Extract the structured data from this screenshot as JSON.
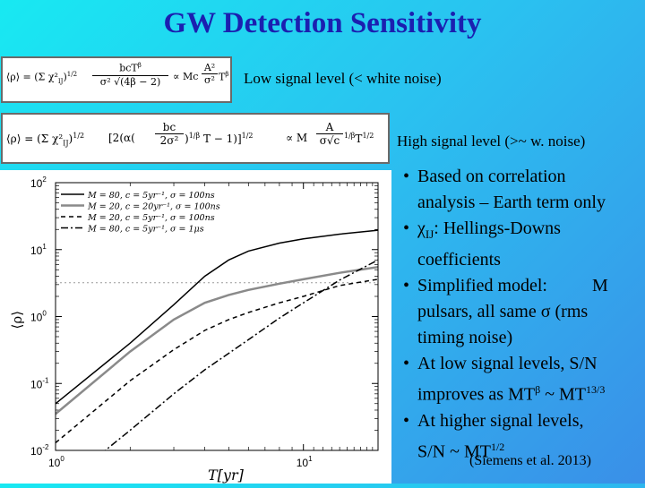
{
  "title": "GW Detection Sensitivity",
  "eq1": {
    "lhs": "⟨ρ⟩ = ",
    "sum_part": "(Σ χ²",
    "sum_sub": "IJ",
    "exp_half": "1/2",
    "num": "bcT",
    "num_sup": "β",
    "den": "σ² √(4β − 2)",
    "propto": "∝ Mc",
    "frac2_num": "A²",
    "frac2_den": "σ²",
    "tail": "T",
    "tail_sup": "β"
  },
  "eq1_caption": "Low signal level (< white noise)",
  "eq2": {
    "lhs": "⟨ρ⟩ = ",
    "sum_part": "(Σ χ²",
    "sum_sub": "IJ",
    "exp_half": "1/2",
    "bracket_open": "[2(α(",
    "inner_num": "bc",
    "inner_den": "2σ²",
    "inner_exp": "1/β",
    "bracket_tail": "T − 1)]",
    "bracket_exp": "1/2",
    "propto": "∝ M",
    "frac_num": "A",
    "frac_den": "σ√c",
    "frac_exp": "1/β",
    "tail": "T",
    "tail_sup": "1/2"
  },
  "eq2_caption": "High signal level (>~ w. noise)",
  "bullets": [
    {
      "first": "Based on correlation",
      "rest": [
        "analysis – Earth term only"
      ]
    },
    {
      "first": "χ",
      "first_sub": "IJ",
      "first_tail": ": Hellings-Downs",
      "rest": [
        "coefficients"
      ]
    },
    {
      "first": "Simplified model:          M",
      "rest": [
        "pulsars, all same σ  (rms",
        "timing noise)"
      ]
    },
    {
      "first": "At low signal levels, S/N",
      "rest_mixed": {
        "a": "improves as MT",
        "a_sup": "β",
        "b": " ~ MT",
        "b_sup": "13/3"
      }
    },
    {
      "first": "At higher signal levels,",
      "rest_mixed2": {
        "a": "S/N ~ MT",
        "a_sup": "1/2"
      }
    }
  ],
  "citation": "(Siemens et al. 2013)",
  "chart_data": {
    "type": "line",
    "xscale": "log",
    "yscale": "log",
    "xlim": [
      1,
      20
    ],
    "ylim": [
      0.01,
      100
    ],
    "xlabel": "T[yr]",
    "ylabel": "⟨ρ⟩",
    "xticks": [
      {
        "v": 1,
        "label": "10",
        "sup": "0"
      },
      {
        "v": 10,
        "label": "10",
        "sup": "1"
      }
    ],
    "yticks": [
      {
        "v": 0.01,
        "label": "10",
        "sup": "-2"
      },
      {
        "v": 0.1,
        "label": "10",
        "sup": "-1"
      },
      {
        "v": 1,
        "label": "10",
        "sup": "0"
      },
      {
        "v": 10,
        "label": "10",
        "sup": "1"
      },
      {
        "v": 100,
        "label": "10",
        "sup": "2"
      }
    ],
    "legend_position": "top-left",
    "series": [
      {
        "name": "M = 80, c = 5yr⁻¹, σ = 100ns",
        "color": "#000000",
        "dash": "solid",
        "width": 1.5,
        "points": [
          [
            1,
            0.05
          ],
          [
            2,
            0.4
          ],
          [
            3,
            1.5
          ],
          [
            4,
            4
          ],
          [
            5,
            7
          ],
          [
            6,
            9.5
          ],
          [
            8,
            12.5
          ],
          [
            10,
            14.5
          ],
          [
            14,
            17
          ],
          [
            20,
            19.5
          ]
        ]
      },
      {
        "name": "M = 20, c = 20yr⁻¹, σ = 100ns",
        "color": "#8a8a8a",
        "dash": "solid",
        "width": 2.5,
        "points": [
          [
            1,
            0.035
          ],
          [
            2,
            0.3
          ],
          [
            3,
            0.9
          ],
          [
            4,
            1.6
          ],
          [
            5,
            2.1
          ],
          [
            6,
            2.5
          ],
          [
            8,
            3.1
          ],
          [
            10,
            3.6
          ],
          [
            14,
            4.5
          ],
          [
            20,
            5.5
          ]
        ]
      },
      {
        "name": "M = 20, c = 5yr⁻¹, σ = 100ns",
        "color": "#000000",
        "dash": "5,4",
        "width": 1.5,
        "points": [
          [
            1,
            0.013
          ],
          [
            2,
            0.11
          ],
          [
            3,
            0.32
          ],
          [
            4,
            0.62
          ],
          [
            5,
            0.9
          ],
          [
            6,
            1.15
          ],
          [
            8,
            1.6
          ],
          [
            10,
            2.0
          ],
          [
            14,
            2.9
          ],
          [
            20,
            3.6
          ]
        ]
      },
      {
        "name": "M = 80, c = 5yr⁻¹, σ = 1μs",
        "color": "#000000",
        "dash": "8,3,2,3",
        "width": 1.5,
        "points": [
          [
            1,
            0.0025
          ],
          [
            2,
            0.02
          ],
          [
            3,
            0.07
          ],
          [
            4,
            0.16
          ],
          [
            6,
            0.45
          ],
          [
            8,
            0.95
          ],
          [
            10,
            1.6
          ],
          [
            14,
            3.5
          ],
          [
            20,
            7.0
          ]
        ]
      }
    ],
    "hlines": [
      {
        "y": 3.2,
        "color": "#9a9a9a",
        "dash": "2,3"
      }
    ]
  }
}
